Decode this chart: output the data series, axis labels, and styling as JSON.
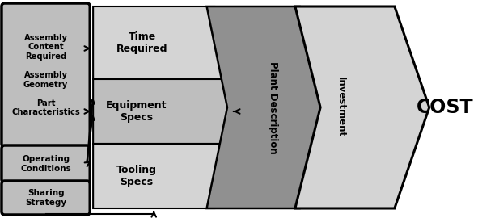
{
  "bg_color": "#ffffff",
  "gray_fill": "#bebebe",
  "dark_gray_fill": "#909090",
  "light_gray_fill": "#d4d4d4",
  "white_fill": "#f0f0f0",
  "box1_text": "Assembly\nContent\nRequired\n\nAssembly\nGeometry\n\nPart\nCharacteristics",
  "box2_text": "Operating\nConditions",
  "box3_text": "Sharing\nStrategy",
  "time_text": "Time\nRequired",
  "equip_text": "Equipment\nSpecs",
  "tool_text": "Tooling\nSpecs",
  "plant_text": "Plant Description",
  "invest_text": "Investment",
  "cost_text": "COST",
  "fig_w": 5.91,
  "fig_h": 2.7,
  "dpi": 100
}
